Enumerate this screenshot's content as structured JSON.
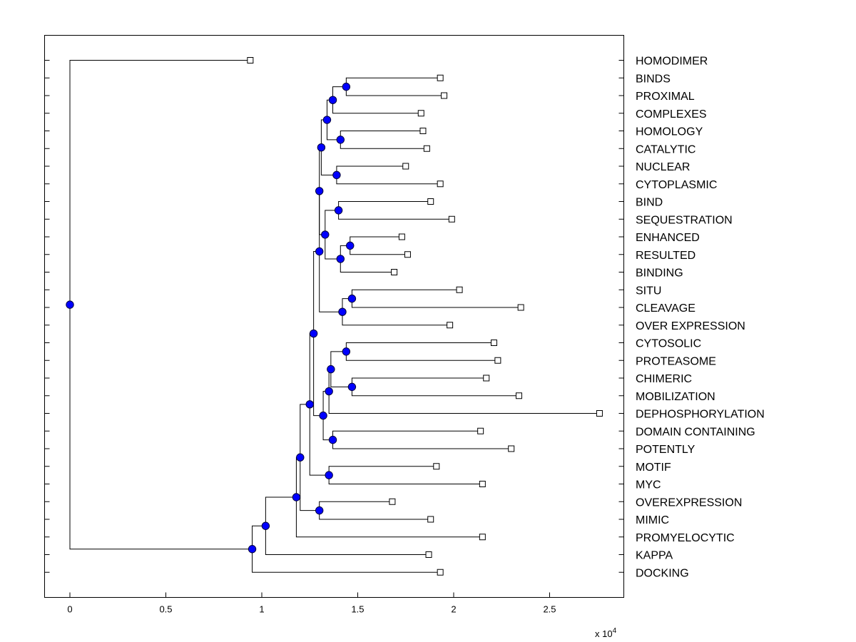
{
  "chart_data": {
    "type": "dendrogram",
    "title": "",
    "xlabel": "",
    "ylabel": "",
    "x_scale_note": "x 10",
    "x_scale_exponent": "4",
    "xlim": [
      -0.13,
      2.9
    ],
    "xticks": [
      0,
      0.5,
      1,
      1.5,
      2,
      2.5
    ],
    "xtick_labels": [
      "0",
      "0.5",
      "1",
      "1.5",
      "2",
      "2.5"
    ],
    "grid": false,
    "leaves": [
      {
        "label": "HOMODIMER",
        "x": 0.94
      },
      {
        "label": "BINDS",
        "x": 1.93
      },
      {
        "label": "PROXIMAL",
        "x": 1.95
      },
      {
        "label": "COMPLEXES",
        "x": 1.83
      },
      {
        "label": "HOMOLOGY",
        "x": 1.84
      },
      {
        "label": "CATALYTIC",
        "x": 1.86
      },
      {
        "label": "NUCLEAR",
        "x": 1.75
      },
      {
        "label": "CYTOPLASMIC",
        "x": 1.93
      },
      {
        "label": "BIND",
        "x": 1.88
      },
      {
        "label": "SEQUESTRATION",
        "x": 1.99
      },
      {
        "label": "ENHANCED",
        "x": 1.73
      },
      {
        "label": "RESULTED",
        "x": 1.76
      },
      {
        "label": "BINDING",
        "x": 1.69
      },
      {
        "label": "SITU",
        "x": 2.03
      },
      {
        "label": "CLEAVAGE",
        "x": 2.35
      },
      {
        "label": "OVER EXPRESSION",
        "x": 1.98
      },
      {
        "label": "CYTOSOLIC",
        "x": 2.21
      },
      {
        "label": "PROTEASOME",
        "x": 2.23
      },
      {
        "label": "CHIMERIC",
        "x": 2.17
      },
      {
        "label": "MOBILIZATION",
        "x": 2.34
      },
      {
        "label": "DEPHOSPHORYLATION",
        "x": 2.76
      },
      {
        "label": "DOMAIN CONTAINING",
        "x": 2.14
      },
      {
        "label": "POTENTLY",
        "x": 2.3
      },
      {
        "label": "MOTIF",
        "x": 1.91
      },
      {
        "label": "MYC",
        "x": 2.15
      },
      {
        "label": "OVEREXPRESSION",
        "x": 1.68
      },
      {
        "label": "MIMIC",
        "x": 1.88
      },
      {
        "label": "PROMYELOCYTIC",
        "x": 2.15
      },
      {
        "label": "KAPPA",
        "x": 1.87
      },
      {
        "label": "DOCKING",
        "x": 1.93
      }
    ],
    "nodes": [
      {
        "id": "n1",
        "x": 1.44,
        "children": [
          "L1",
          "L2"
        ]
      },
      {
        "id": "n2",
        "x": 1.37,
        "children": [
          "n1",
          "L3"
        ]
      },
      {
        "id": "n3",
        "x": 1.41,
        "children": [
          "L4",
          "L5"
        ]
      },
      {
        "id": "n4",
        "x": 1.34,
        "children": [
          "n2",
          "n3"
        ]
      },
      {
        "id": "n5",
        "x": 1.39,
        "children": [
          "L6",
          "L7"
        ]
      },
      {
        "id": "n6",
        "x": 1.31,
        "children": [
          "n4",
          "n5"
        ]
      },
      {
        "id": "n7",
        "x": 1.4,
        "children": [
          "L8",
          "L9"
        ]
      },
      {
        "id": "n8",
        "x": 1.46,
        "children": [
          "L10",
          "L11"
        ]
      },
      {
        "id": "n9",
        "x": 1.41,
        "children": [
          "n8",
          "L12"
        ]
      },
      {
        "id": "n10",
        "x": 1.33,
        "children": [
          "n7",
          "n9"
        ]
      },
      {
        "id": "n11",
        "x": 1.3,
        "children": [
          "n6",
          "n10"
        ]
      },
      {
        "id": "n12",
        "x": 1.47,
        "children": [
          "L13",
          "L14"
        ]
      },
      {
        "id": "n13",
        "x": 1.42,
        "children": [
          "n12",
          "L15"
        ]
      },
      {
        "id": "n14",
        "x": 1.3,
        "children": [
          "n11",
          "n13"
        ]
      },
      {
        "id": "n15",
        "x": 1.44,
        "children": [
          "L16",
          "L17"
        ]
      },
      {
        "id": "n16",
        "x": 1.47,
        "children": [
          "L18",
          "L19"
        ]
      },
      {
        "id": "n17",
        "x": 1.36,
        "children": [
          "n15",
          "n16"
        ]
      },
      {
        "id": "n18",
        "x": 1.35,
        "children": [
          "n17",
          "L20"
        ]
      },
      {
        "id": "n19",
        "x": 1.37,
        "children": [
          "L21",
          "L22"
        ]
      },
      {
        "id": "n20",
        "x": 1.32,
        "children": [
          "n18",
          "n19"
        ]
      },
      {
        "id": "n21",
        "x": 1.27,
        "children": [
          "n14",
          "n20"
        ]
      },
      {
        "id": "n22",
        "x": 1.35,
        "children": [
          "L23",
          "L24"
        ]
      },
      {
        "id": "n23",
        "x": 1.25,
        "children": [
          "n21",
          "n22"
        ]
      },
      {
        "id": "n24",
        "x": 1.3,
        "children": [
          "L25",
          "L26"
        ]
      },
      {
        "id": "n25",
        "x": 1.2,
        "children": [
          "n23",
          "n24"
        ]
      },
      {
        "id": "n26",
        "x": 1.18,
        "children": [
          "n25",
          "L27"
        ]
      },
      {
        "id": "n27",
        "x": 1.02,
        "children": [
          "n26",
          "L28"
        ]
      },
      {
        "id": "n28",
        "x": 0.95,
        "children": [
          "n27",
          "L29"
        ]
      },
      {
        "id": "n29",
        "x": 0,
        "children": [
          "L0",
          "n28"
        ]
      }
    ]
  }
}
